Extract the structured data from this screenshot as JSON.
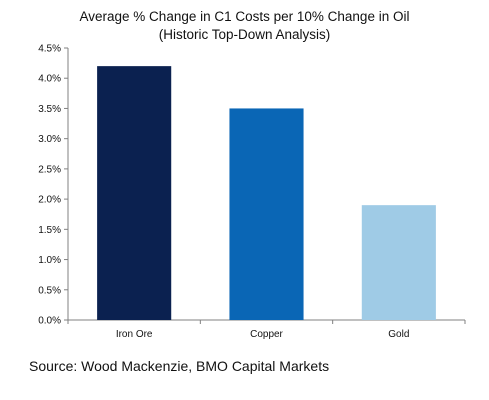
{
  "chart_data": {
    "type": "bar",
    "title": "Average % Change in C1 Costs per 10% Change in Oil",
    "subtitle": "(Historic Top-Down Analysis)",
    "categories": [
      "Iron Ore",
      "Copper",
      "Gold"
    ],
    "values": [
      4.2,
      3.5,
      1.9
    ],
    "colors": [
      "#0b2150",
      "#0a66b5",
      "#9fcbe6"
    ],
    "ylim": [
      0,
      4.5
    ],
    "yticks": [
      0,
      0.5,
      1.0,
      1.5,
      2.0,
      2.5,
      3.0,
      3.5,
      4.0,
      4.5
    ],
    "ytick_labels": [
      "0.0%",
      "0.5%",
      "1.0%",
      "1.5%",
      "2.0%",
      "2.5%",
      "3.0%",
      "3.5%",
      "4.0%",
      "4.5%"
    ],
    "xlabel": "",
    "ylabel": "",
    "grid": false,
    "legend": false
  },
  "source": "Source: Wood Mackenzie, BMO Capital Markets"
}
